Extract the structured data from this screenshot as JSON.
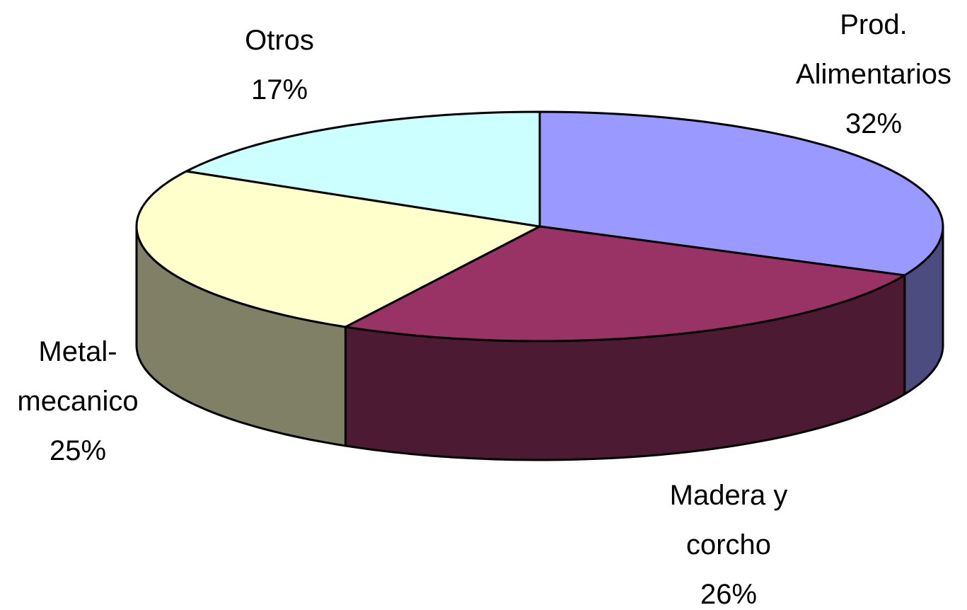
{
  "chart_data": {
    "type": "pie",
    "three_d": true,
    "categories": [
      "Prod. Alimentarios",
      "Madera y corcho",
      "Metal-mecanico",
      "Otros"
    ],
    "values": [
      32,
      26,
      25,
      17
    ],
    "value_labels": [
      "32%",
      "26%",
      "25%",
      "17%"
    ],
    "colors": [
      "#9999ff",
      "#993366",
      "#ffffcc",
      "#ccffff"
    ],
    "side_colors": [
      "#4c4c80",
      "#4c1a33",
      "#808066",
      "#668080"
    ]
  }
}
